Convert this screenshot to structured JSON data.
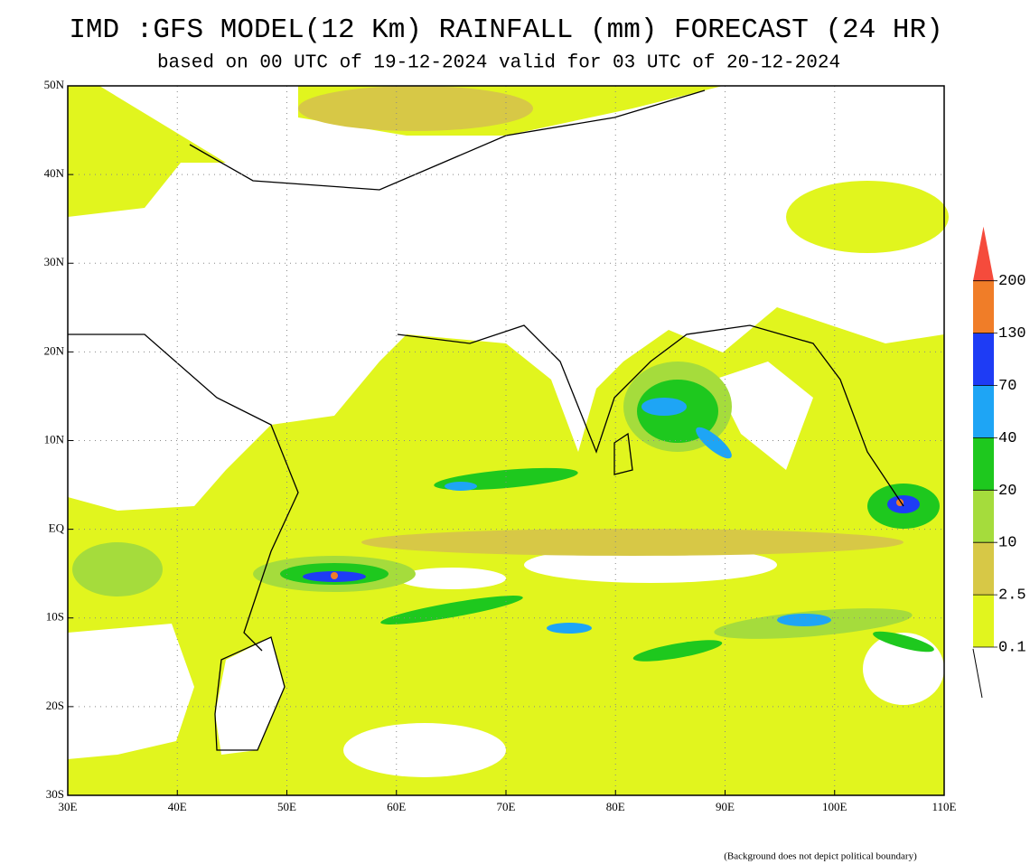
{
  "title": "IMD :GFS MODEL(12 Km) RAINFALL (mm) FORECAST (24 HR)",
  "subtitle": "based on 00 UTC of 19-12-2024 valid for 03 UTC of 20-12-2024",
  "map": {
    "lonlim": [
      30,
      110
    ],
    "latlim": [
      -30,
      50
    ],
    "lon_ticks": [
      {
        "value": 30,
        "label": "30E"
      },
      {
        "value": 40,
        "label": "40E"
      },
      {
        "value": 50,
        "label": "50E"
      },
      {
        "value": 60,
        "label": "60E"
      },
      {
        "value": 70,
        "label": "70E"
      },
      {
        "value": 80,
        "label": "80E"
      },
      {
        "value": 90,
        "label": "90E"
      },
      {
        "value": 100,
        "label": "100E"
      },
      {
        "value": 110,
        "label": "110E"
      }
    ],
    "lat_ticks": [
      {
        "value": 50,
        "label": "50N"
      },
      {
        "value": 40,
        "label": "40N"
      },
      {
        "value": 30,
        "label": "30N"
      },
      {
        "value": 20,
        "label": "20N"
      },
      {
        "value": 10,
        "label": "10N"
      },
      {
        "value": 0,
        "label": "EQ"
      },
      {
        "value": -10,
        "label": "10S"
      },
      {
        "value": -20,
        "label": "20S"
      },
      {
        "value": -30,
        "label": "30S"
      }
    ]
  },
  "colorbar": {
    "levels": [
      0.1,
      2.5,
      10,
      20,
      40,
      70,
      130,
      200
    ],
    "colors": [
      "#e1f51e",
      "#d7c846",
      "#a5dc3c",
      "#1ec81e",
      "#1ea5f5",
      "#1e3cf5",
      "#f07d28",
      "#f54b3c"
    ]
  },
  "footnote": "(Background does not depict political boundary)"
}
